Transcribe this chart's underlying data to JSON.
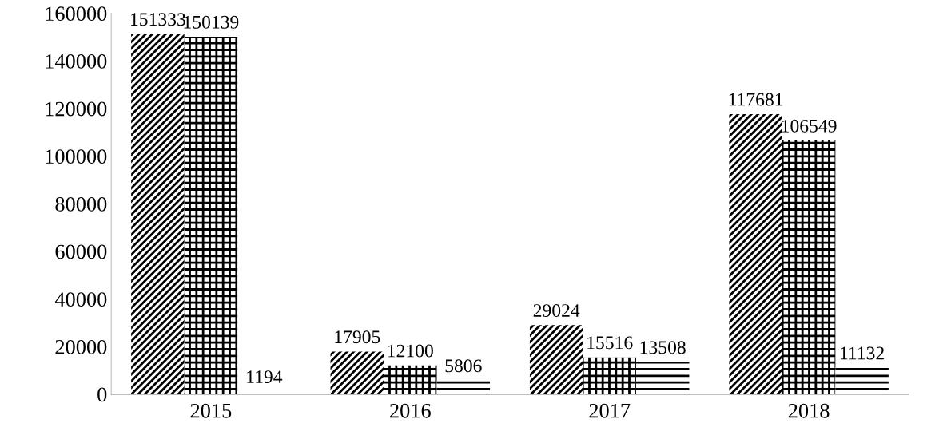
{
  "chart_data": {
    "type": "bar",
    "categories": [
      "2015",
      "2016",
      "2017",
      "2018"
    ],
    "series": [
      {
        "color": "#000000",
        "values": [
          151333,
          17905,
          29024,
          117681
        ]
      },
      {
        "color": "#000000",
        "values": [
          150139,
          12100,
          15516,
          106549
        ]
      },
      {
        "color": "#000000",
        "values": [
          1194,
          5806,
          13508,
          11132
        ]
      }
    ],
    "ylim": [
      0,
      160000
    ],
    "yticks": [
      0,
      20000,
      40000,
      60000,
      80000,
      100000,
      120000,
      140000,
      160000
    ],
    "data_labels": true,
    "grid": false,
    "legend": false
  }
}
